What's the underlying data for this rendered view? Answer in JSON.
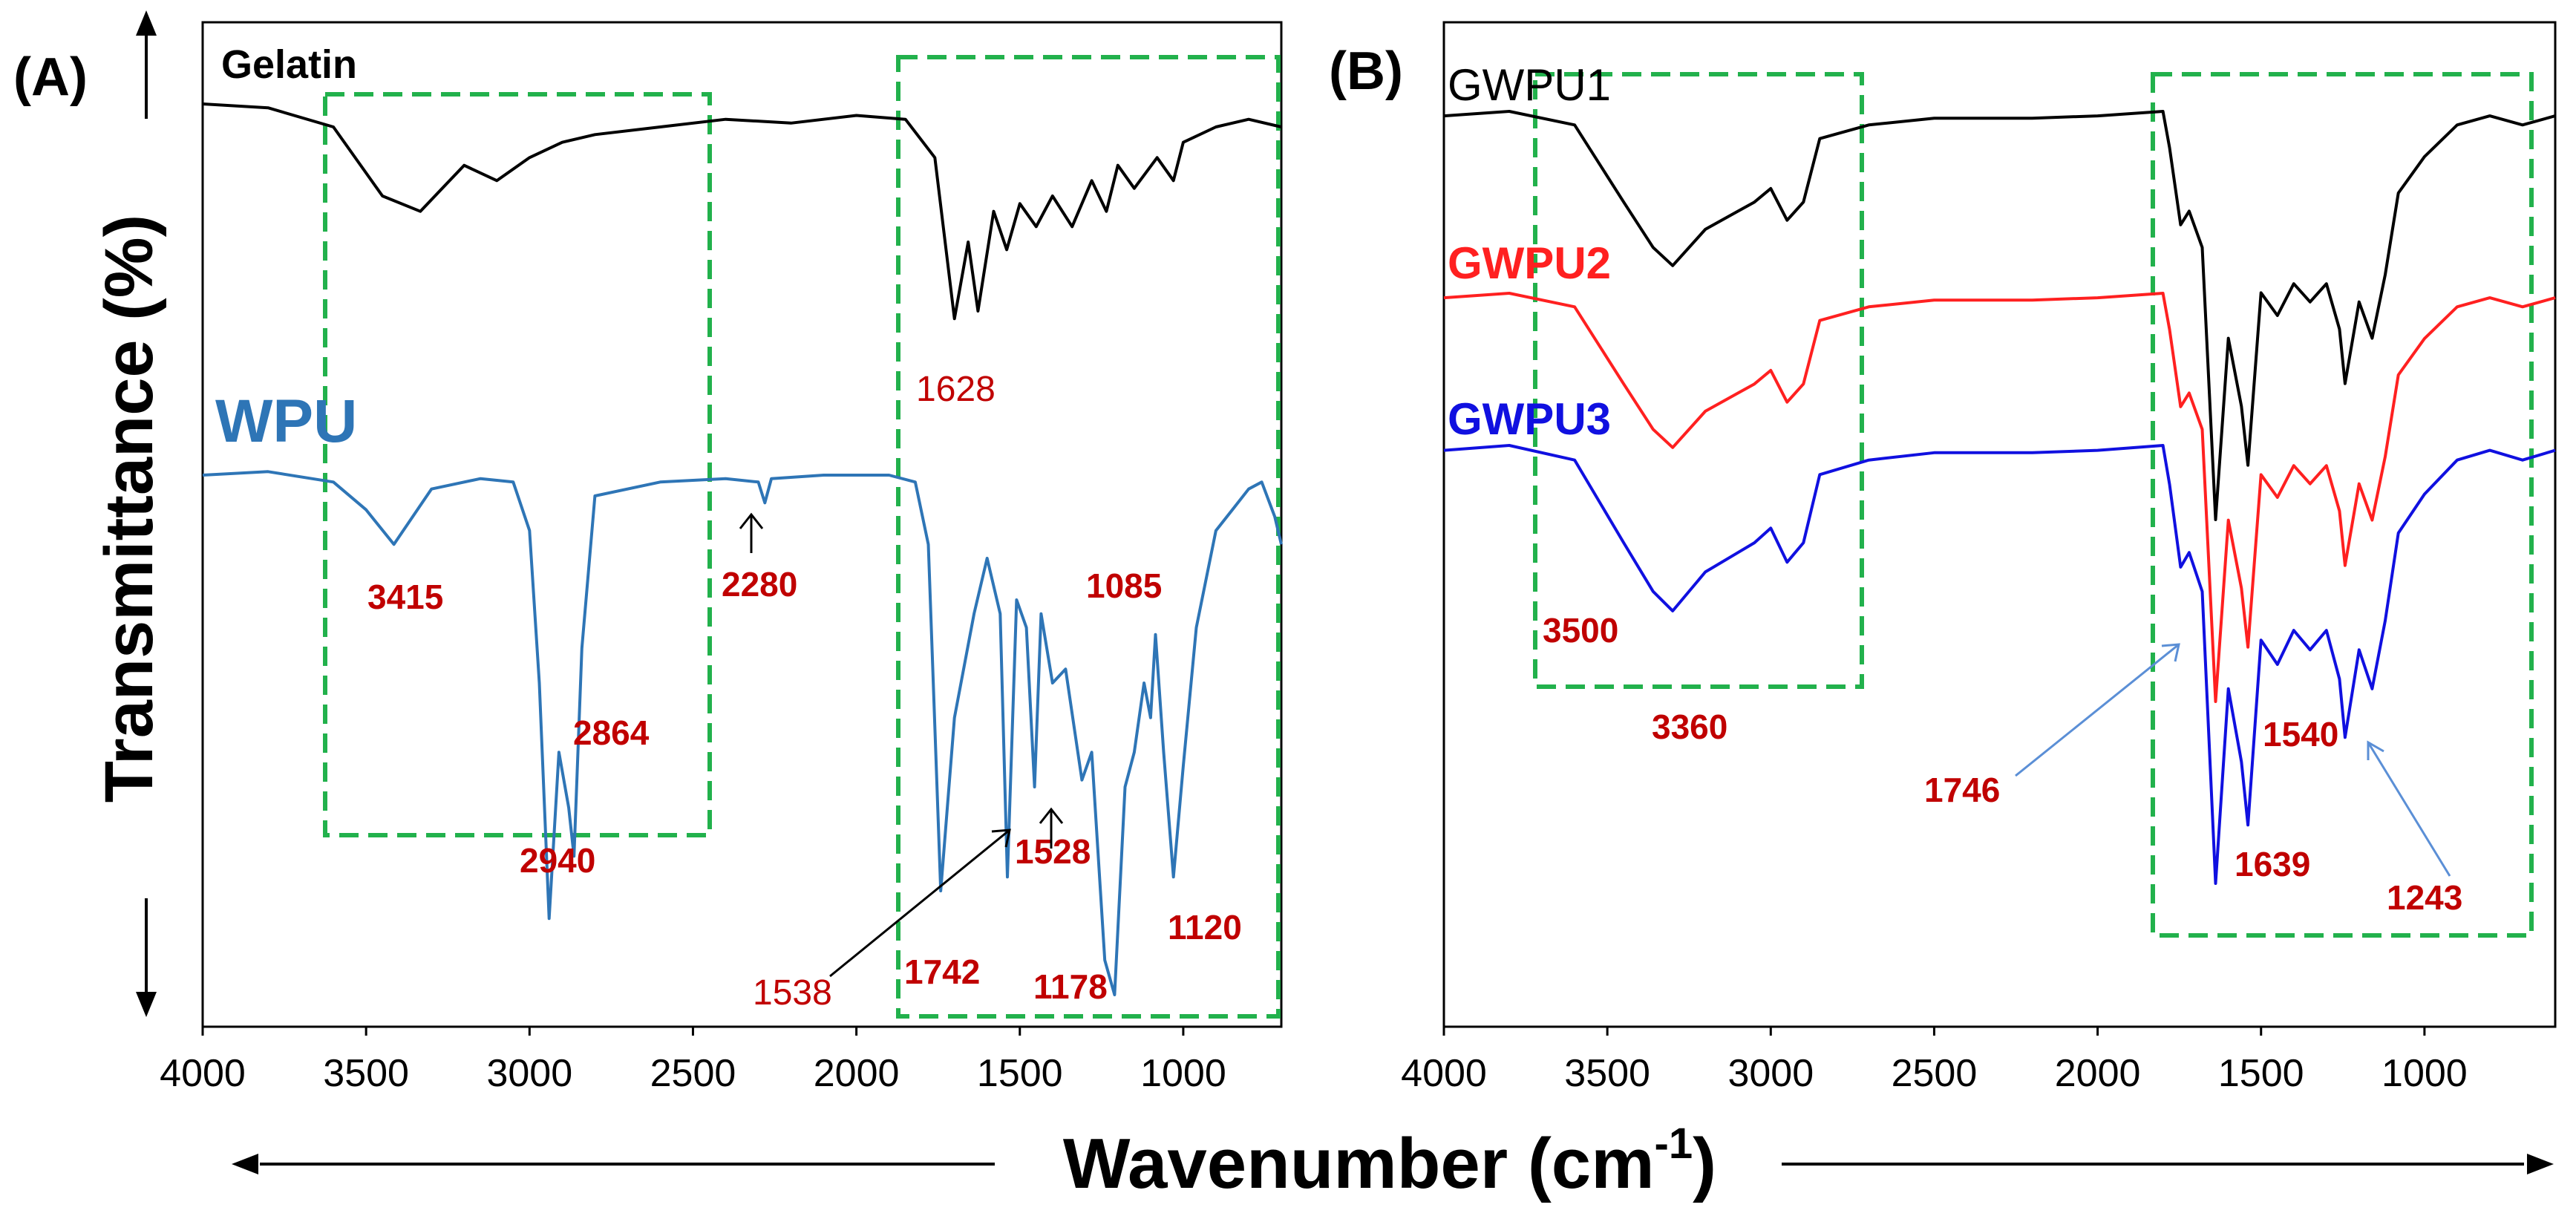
{
  "figure": {
    "ylabel": "Transmittance (%)",
    "xlabel_main": "Wavenumber (cm",
    "xlabel_sup": "-1",
    "xlabel_close": ")",
    "colors": {
      "gelatin": "#000000",
      "wpu": "#2e75b6",
      "wpu_label": "#2e75b6",
      "gwpu1": "#000000",
      "gwpu2": "#ff2020",
      "gwpu3": "#1010e0",
      "peak_label": "#c00000",
      "dashed_box": "#22b14c",
      "axis": "#000000"
    }
  },
  "chart_data": [
    {
      "panel": "(A)",
      "type": "line",
      "x_axis": {
        "label": "Wavenumber (cm-1)",
        "range": [
          4000,
          700
        ],
        "reversed": true,
        "ticks": [
          4000,
          3500,
          3000,
          2500,
          2000,
          1500,
          1000
        ],
        "tick_labels": [
          "4000",
          "3500",
          "3000",
          "2500",
          "2000",
          "1500",
          "1000"
        ]
      },
      "y_axis": {
        "label": "Transmittance (%)",
        "ticks_shown": false
      },
      "series": [
        {
          "name": "Gelatin",
          "x": [
            4000,
            3800,
            3600,
            3450,
            3334,
            3200,
            3100,
            3000,
            2900,
            2800,
            2600,
            2400,
            2200,
            2000,
            1850,
            1760,
            1700,
            1658,
            1628,
            1580,
            1540,
            1500,
            1450,
            1400,
            1340,
            1280,
            1235,
            1200,
            1150,
            1080,
            1030,
            1000,
            900,
            800,
            700
          ],
          "y": [
            100,
            99.5,
            97,
            88,
            86,
            92,
            90,
            93,
            95,
            96,
            97,
            98,
            97.5,
            98.5,
            98,
            93,
            72,
            82,
            73,
            86,
            81,
            87,
            84,
            88,
            84,
            90,
            86,
            92,
            89,
            93,
            90,
            95,
            97,
            98,
            97
          ]
        },
        {
          "name": "WPU",
          "x": [
            4000,
            3800,
            3600,
            3500,
            3415,
            3300,
            3150,
            3050,
            3000,
            2970,
            2940,
            2910,
            2880,
            2864,
            2840,
            2800,
            2600,
            2400,
            2300,
            2280,
            2260,
            2100,
            1900,
            1820,
            1780,
            1742,
            1700,
            1640,
            1600,
            1560,
            1538,
            1510,
            1480,
            1455,
            1435,
            1400,
            1360,
            1310,
            1280,
            1240,
            1210,
            1178,
            1150,
            1120,
            1100,
            1085,
            1060,
            1030,
            1000,
            960,
            900,
            850,
            800,
            760,
            720,
            700
          ],
          "y": [
            100,
            100.5,
            99,
            95,
            90,
            98,
            99.5,
            99,
            92,
            70,
            36,
            60,
            52,
            45,
            75,
            97,
            99,
            99.5,
            99,
            96,
            99.5,
            100,
            100,
            99,
            90,
            40,
            65,
            80,
            88,
            80,
            42,
            82,
            78,
            55,
            80,
            70,
            72,
            56,
            60,
            30,
            25,
            55,
            60,
            70,
            65,
            77,
            60,
            42,
            58,
            78,
            92,
            95,
            98,
            99,
            94,
            90
          ]
        }
      ],
      "series_labels": [
        "Gelatin",
        "WPU"
      ],
      "peak_labels": [
        "1628",
        "3415",
        "2280",
        "1085",
        "2864",
        "2940",
        "1528",
        "1538",
        "1742",
        "1178",
        "1120"
      ],
      "annotations": {
        "panel_label": "(A)",
        "boxes": [
          [
            3650,
            2480
          ],
          [
            1880,
            730
          ]
        ]
      }
    },
    {
      "panel": "(B)",
      "type": "line",
      "x_axis": {
        "label": "Wavenumber (cm-1)",
        "range": [
          4000,
          600
        ],
        "reversed": true,
        "ticks": [
          4000,
          3500,
          3000,
          2500,
          2000,
          1500,
          1000
        ],
        "tick_labels": [
          "4000",
          "3500",
          "3000",
          "2500",
          "2000",
          "1500",
          "1000"
        ]
      },
      "y_axis": {
        "label": "Transmittance (%)",
        "ticks_shown": false
      },
      "series": [
        {
          "name": "GWPU1",
          "x": [
            4000,
            3800,
            3600,
            3450,
            3360,
            3300,
            3200,
            3100,
            3050,
            3000,
            2950,
            2900,
            2850,
            2700,
            2500,
            2200,
            2000,
            1800,
            1780,
            1746,
            1720,
            1680,
            1639,
            1600,
            1560,
            1540,
            1500,
            1450,
            1400,
            1350,
            1300,
            1260,
            1243,
            1200,
            1160,
            1120,
            1080,
            1000,
            900,
            800,
            700,
            600
          ],
          "y": [
            99,
            100,
            97,
            80,
            70,
            66,
            74,
            78,
            80,
            83,
            76,
            80,
            94,
            97,
            98.5,
            98.5,
            99,
            100,
            92,
            75,
            78,
            70,
            10,
            50,
            35,
            22,
            60,
            55,
            62,
            58,
            62,
            52,
            40,
            58,
            50,
            64,
            82,
            90,
            97,
            99,
            97,
            99
          ]
        },
        {
          "name": "GWPU2",
          "x": [
            4000,
            3800,
            3600,
            3450,
            3360,
            3300,
            3200,
            3100,
            3050,
            3000,
            2950,
            2900,
            2850,
            2700,
            2500,
            2200,
            2000,
            1800,
            1780,
            1746,
            1720,
            1680,
            1639,
            1600,
            1560,
            1540,
            1500,
            1450,
            1400,
            1350,
            1300,
            1260,
            1243,
            1200,
            1160,
            1120,
            1080,
            1000,
            900,
            800,
            700,
            600
          ],
          "y": [
            99,
            100,
            97,
            80,
            70,
            66,
            74,
            78,
            80,
            83,
            76,
            80,
            94,
            97,
            98.5,
            98.5,
            99,
            100,
            92,
            75,
            78,
            70,
            10,
            50,
            35,
            22,
            60,
            55,
            62,
            58,
            62,
            52,
            40,
            58,
            50,
            64,
            82,
            90,
            97,
            99,
            97,
            99
          ]
        },
        {
          "name": "GWPU3",
          "x": [
            4000,
            3800,
            3600,
            3450,
            3360,
            3300,
            3200,
            3100,
            3050,
            3000,
            2950,
            2900,
            2850,
            2700,
            2500,
            2200,
            2000,
            1800,
            1780,
            1746,
            1720,
            1680,
            1639,
            1600,
            1560,
            1540,
            1500,
            1450,
            1400,
            1350,
            1300,
            1260,
            1243,
            1200,
            1160,
            1120,
            1080,
            1000,
            900,
            800,
            700,
            600
          ],
          "y": [
            99,
            100,
            97,
            80,
            70,
            66,
            74,
            78,
            80,
            83,
            76,
            80,
            94,
            97,
            98.5,
            98.5,
            99,
            100,
            92,
            75,
            78,
            70,
            10,
            50,
            35,
            22,
            60,
            55,
            62,
            58,
            62,
            52,
            40,
            58,
            50,
            64,
            82,
            90,
            97,
            99,
            97,
            99
          ]
        }
      ],
      "series_labels": [
        "GWPU1",
        "GWPU2",
        "GWPU3"
      ],
      "peak_labels": [
        "3500",
        "3360",
        "1746",
        "1540",
        "1639",
        "1243"
      ],
      "annotations": {
        "panel_label": "(B)",
        "boxes": [
          [
            3720,
            2720
          ],
          [
            1830,
            660
          ]
        ]
      }
    }
  ]
}
